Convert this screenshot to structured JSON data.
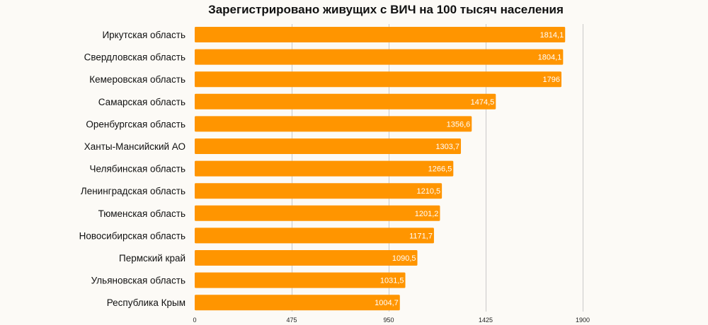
{
  "chart_data": {
    "type": "bar",
    "orientation": "horizontal",
    "title": "Зарегистрировано живущих с ВИЧ на 100 тысяч населения",
    "categories": [
      "Иркутская область",
      "Свердловская область",
      "Кемеровская область",
      "Самарская область",
      "Оренбургская область",
      "Ханты-Мансийский АО",
      "Челябинская область",
      "Ленинградская область",
      "Тюменская область",
      "Новосибирская область",
      "Пермский край",
      "Ульяновская область",
      "Республика Крым"
    ],
    "values": [
      1814.1,
      1804.1,
      1796,
      1474.5,
      1356.6,
      1303.7,
      1266.5,
      1210.5,
      1201.2,
      1171.7,
      1090.5,
      1031.5,
      1004.7
    ],
    "value_labels": [
      "1814,1",
      "1804,1",
      "1796",
      "1474,5",
      "1356,6",
      "1303,7",
      "1266,5",
      "1210,5",
      "1201,2",
      "1171,7",
      "1090,5",
      "1031,5",
      "1004,7"
    ],
    "xticks": [
      0,
      475,
      950,
      1425,
      1900
    ],
    "xtick_labels": [
      "0",
      "475",
      "950",
      "1425",
      "1900"
    ],
    "xlim": [
      0,
      1900
    ],
    "grid": true,
    "bar_color": "#ff9500",
    "background_color": "#fcfaf6"
  }
}
